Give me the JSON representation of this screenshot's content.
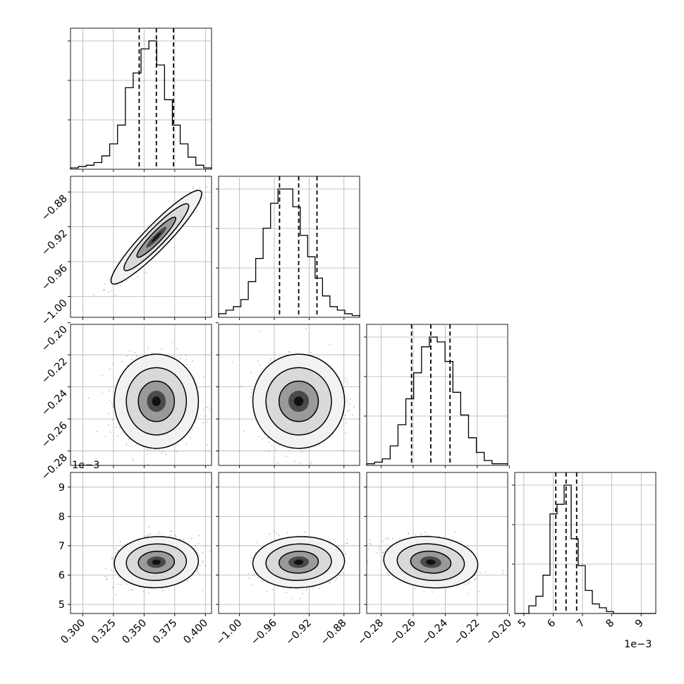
{
  "chart_data": {
    "type": "corner",
    "variables": [
      {
        "ticks": [
          0.3,
          0.325,
          0.35,
          0.375,
          0.4
        ],
        "tick_labels": [
          "0.300",
          "0.325",
          "0.350",
          "0.375",
          "0.400"
        ],
        "range": [
          0.29,
          0.405
        ],
        "quantiles": [
          0.346,
          0.36,
          0.374
        ]
      },
      {
        "ticks": [
          -1.0,
          -0.96,
          -0.92,
          -0.88
        ],
        "tick_labels": [
          "−1.00",
          "−0.96",
          "−0.92",
          "−0.88"
        ],
        "range": [
          -1.024,
          -0.862
        ],
        "quantiles": [
          -0.954,
          -0.932,
          -0.911
        ]
      },
      {
        "ticks": [
          -0.28,
          -0.26,
          -0.24,
          -0.22,
          -0.2
        ],
        "tick_labels": [
          "−0.28",
          "−0.26",
          "−0.24",
          "−0.22",
          "−0.20"
        ],
        "range": [
          -0.289,
          -0.201
        ],
        "quantiles": [
          -0.261,
          -0.249,
          -0.237
        ]
      },
      {
        "ticks": [
          5,
          6,
          7,
          8,
          9
        ],
        "tick_labels": [
          "5",
          "6",
          "7",
          "8",
          "9"
        ],
        "range": [
          4.69,
          9.5
        ],
        "quantiles": [
          6.09,
          6.44,
          6.8
        ],
        "offset_label": "1e−3"
      }
    ],
    "histograms": [
      {
        "counts": [
          1,
          2,
          3,
          5,
          10,
          19,
          33,
          61,
          72,
          90,
          96,
          78,
          52,
          33,
          19,
          9,
          3,
          1
        ]
      },
      {
        "counts": [
          2,
          4,
          6,
          10,
          20,
          33,
          50,
          64,
          72,
          72,
          62,
          46,
          34,
          22,
          12,
          6,
          4,
          2,
          1
        ]
      },
      {
        "counts": [
          1,
          2,
          4,
          12,
          25,
          41,
          57,
          73,
          79,
          76,
          64,
          45,
          31,
          17,
          8,
          3,
          1,
          1
        ]
      },
      {
        "counts": [
          0,
          0,
          4,
          9,
          20,
          52,
          57,
          67,
          39,
          25,
          12,
          5,
          3,
          1,
          0,
          0,
          0,
          0,
          0,
          0
        ]
      }
    ],
    "correlations": {
      "1-0": 0.95,
      "2-0": 0.0,
      "2-1": 0.05,
      "3-0": 0.15,
      "3-1": 0.15,
      "3-2": -0.3
    },
    "grid": true,
    "contour_levels": 3
  },
  "labels": {
    "offset_y_row3": "1e−3",
    "offset_x_col3": "1e−3"
  },
  "colors": {
    "axis": "#000000",
    "grid": "#b0b0b0",
    "density": "#000000",
    "line": "#000000"
  }
}
